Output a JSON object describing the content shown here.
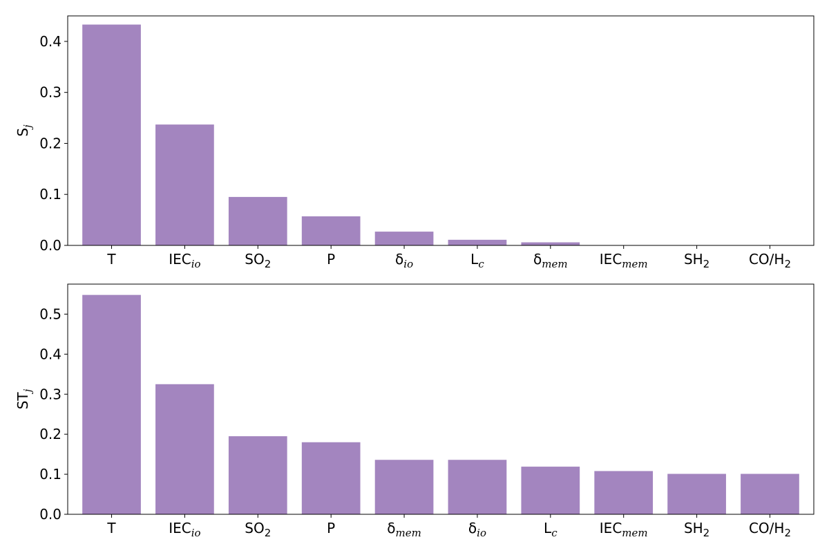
{
  "chart_data": [
    {
      "type": "bar",
      "ylabel": {
        "base": "S",
        "sub": "j",
        "sub_style": "italic"
      },
      "ylim": [
        0,
        0.45
      ],
      "yticks": [
        "0.0",
        "0.1",
        "0.2",
        "0.3",
        "0.4"
      ],
      "color": "#a385bf",
      "categories": [
        {
          "base": "T",
          "sub": "",
          "sub_style": "none"
        },
        {
          "base": "IEC",
          "sub": "io",
          "sub_style": "italic"
        },
        {
          "base": "SO",
          "sub": "2",
          "sub_style": "normal"
        },
        {
          "base": "P",
          "sub": "",
          "sub_style": "none"
        },
        {
          "base": "δ",
          "sub": "io",
          "sub_style": "italic"
        },
        {
          "base": "L",
          "sub": "c",
          "sub_style": "italic"
        },
        {
          "base": "δ",
          "sub": "mem",
          "sub_style": "italic"
        },
        {
          "base": "IEC",
          "sub": "mem",
          "sub_style": "italic"
        },
        {
          "base": "SH",
          "sub": "2",
          "sub_style": "normal"
        },
        {
          "base": "CO/H",
          "sub": "2",
          "sub_style": "normal"
        }
      ],
      "values": [
        0.433,
        0.237,
        0.095,
        0.057,
        0.027,
        0.011,
        0.006,
        0.0,
        0.0,
        0.0
      ]
    },
    {
      "type": "bar",
      "ylabel": {
        "base": "ST",
        "sub": "j",
        "sub_style": "italic"
      },
      "ylim": [
        0,
        0.575
      ],
      "yticks": [
        "0.0",
        "0.1",
        "0.2",
        "0.3",
        "0.4",
        "0.5"
      ],
      "color": "#a385bf",
      "categories": [
        {
          "base": "T",
          "sub": "",
          "sub_style": "none"
        },
        {
          "base": "IEC",
          "sub": "io",
          "sub_style": "italic"
        },
        {
          "base": "SO",
          "sub": "2",
          "sub_style": "normal"
        },
        {
          "base": "P",
          "sub": "",
          "sub_style": "none"
        },
        {
          "base": "δ",
          "sub": "mem",
          "sub_style": "italic"
        },
        {
          "base": "δ",
          "sub": "io",
          "sub_style": "italic"
        },
        {
          "base": "L",
          "sub": "c",
          "sub_style": "italic"
        },
        {
          "base": "IEC",
          "sub": "mem",
          "sub_style": "italic"
        },
        {
          "base": "SH",
          "sub": "2",
          "sub_style": "normal"
        },
        {
          "base": "CO/H",
          "sub": "2",
          "sub_style": "normal"
        }
      ],
      "values": [
        0.548,
        0.325,
        0.195,
        0.18,
        0.136,
        0.136,
        0.119,
        0.108,
        0.101,
        0.101
      ]
    }
  ]
}
